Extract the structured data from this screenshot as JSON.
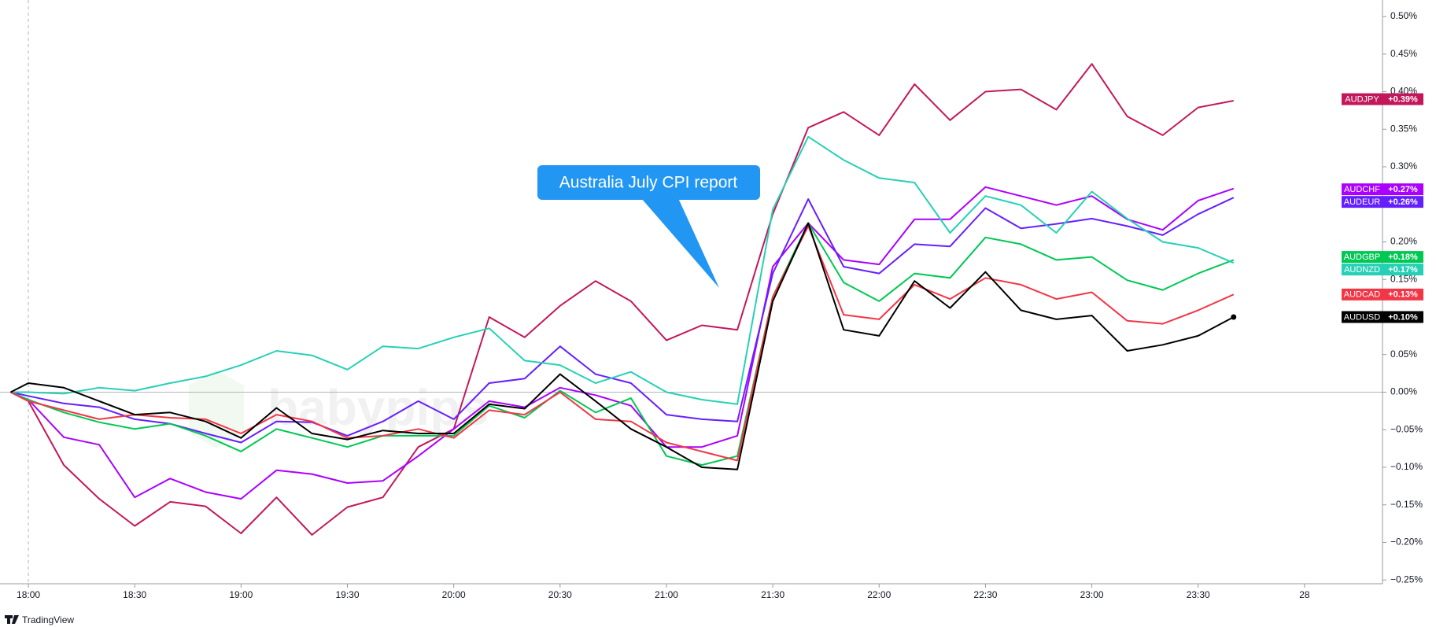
{
  "chart_data": {
    "type": "line",
    "annotation": "Australia July CPI report",
    "watermark": "babypips",
    "footer": "TradingView",
    "x": [
      "17:55",
      "18:00",
      "18:10",
      "18:20",
      "18:30",
      "18:40",
      "18:50",
      "19:00",
      "19:10",
      "19:20",
      "19:30",
      "19:40",
      "19:50",
      "20:00",
      "20:10",
      "20:20",
      "20:30",
      "20:40",
      "20:50",
      "21:00",
      "21:10",
      "21:20",
      "21:30",
      "21:40",
      "21:50",
      "22:00",
      "22:10",
      "22:20",
      "22:30",
      "22:40",
      "22:50",
      "23:00",
      "23:10",
      "23:20",
      "23:30",
      "23:40"
    ],
    "xlim": [
      "17:52",
      "00:22"
    ],
    "xticks": [
      "18:00",
      "18:30",
      "19:00",
      "19:30",
      "20:00",
      "20:30",
      "21:00",
      "21:30",
      "22:00",
      "22:30",
      "23:00",
      "23:30",
      {
        "value": "00:00",
        "label": "28"
      }
    ],
    "ylim": [
      -0.255,
      0.522
    ],
    "yticks": [
      {
        "value": 0.5,
        "label": "0.50%"
      },
      {
        "value": 0.45,
        "label": "0.45%"
      },
      {
        "value": 0.4,
        "label": "0.40%"
      },
      {
        "value": 0.35,
        "label": "0.35%"
      },
      {
        "value": 0.3,
        "label": "0.30%"
      },
      {
        "value": 0.25,
        "label": "0.25%"
      },
      {
        "value": 0.2,
        "label": "0.20%"
      },
      {
        "value": 0.15,
        "label": "0.15%"
      },
      {
        "value": 0.1,
        "label": "0.10%"
      },
      {
        "value": 0.05,
        "label": "0.05%"
      },
      {
        "value": 0,
        "label": "0.00%"
      },
      {
        "value": -0.05,
        "label": "−0.05%"
      },
      {
        "value": -0.1,
        "label": "−0.10%"
      },
      {
        "value": -0.15,
        "label": "−0.15%"
      },
      {
        "value": -0.2,
        "label": "−0.20%"
      },
      {
        "value": -0.25,
        "label": "−0.25%"
      }
    ],
    "grid": false,
    "series": [
      {
        "name": "AUDJPY",
        "color": "#c2185b",
        "last": {
          "value": 0.39,
          "label": "+0.39%"
        },
        "values": [
          0,
          -0.012,
          -0.097,
          -0.142,
          -0.178,
          -0.146,
          -0.152,
          -0.188,
          -0.14,
          -0.19,
          -0.153,
          -0.14,
          -0.073,
          -0.049,
          0.1,
          0.073,
          0.115,
          0.148,
          0.121,
          0.069,
          0.089,
          0.083,
          0.237,
          0.352,
          0.373,
          0.342,
          0.41,
          0.362,
          0.4,
          0.403,
          0.376,
          0.437,
          0.367,
          0.342,
          0.379,
          0.388
        ]
      },
      {
        "name": "AUDCHF",
        "color": "#aa00ff",
        "last": {
          "value": 0.27,
          "label": "+0.27%"
        },
        "values": [
          0,
          -0.01,
          -0.06,
          -0.07,
          -0.14,
          -0.115,
          -0.133,
          -0.142,
          -0.104,
          -0.109,
          -0.121,
          -0.118,
          -0.085,
          -0.049,
          -0.012,
          -0.02,
          0.006,
          -0.004,
          -0.018,
          -0.073,
          -0.073,
          -0.058,
          0.167,
          0.225,
          0.176,
          0.17,
          0.23,
          0.23,
          0.273,
          0.261,
          0.249,
          0.261,
          0.23,
          0.216,
          0.255,
          0.271
        ]
      },
      {
        "name": "AUDEUR",
        "color": "#651fff",
        "last": {
          "value": 0.26,
          "label": "+0.26%"
        },
        "values": [
          0,
          -0.005,
          -0.015,
          -0.02,
          -0.036,
          -0.042,
          -0.055,
          -0.067,
          -0.039,
          -0.04,
          -0.058,
          -0.039,
          -0.012,
          -0.036,
          0.012,
          0.018,
          0.061,
          0.024,
          0.012,
          -0.03,
          -0.036,
          -0.039,
          0.158,
          0.257,
          0.167,
          0.158,
          0.197,
          0.194,
          0.245,
          0.218,
          0.224,
          0.231,
          0.221,
          0.209,
          0.237,
          0.259
        ]
      },
      {
        "name": "AUDGBP",
        "color": "#00c853",
        "last": {
          "value": 0.18,
          "label": "+0.18%"
        },
        "values": [
          0,
          -0.01,
          -0.027,
          -0.04,
          -0.049,
          -0.042,
          -0.058,
          -0.079,
          -0.049,
          -0.061,
          -0.073,
          -0.058,
          -0.058,
          -0.058,
          -0.018,
          -0.034,
          0.002,
          -0.027,
          -0.008,
          -0.085,
          -0.097,
          -0.085,
          0.127,
          0.225,
          0.146,
          0.121,
          0.158,
          0.152,
          0.206,
          0.197,
          0.176,
          0.18,
          0.149,
          0.136,
          0.158,
          0.176
        ]
      },
      {
        "name": "AUDNZD",
        "color": "#26d0b5",
        "last": {
          "value": 0.17,
          "label": "+0.17%"
        },
        "values": [
          0,
          0,
          -0.002,
          0.006,
          0.002,
          0.012,
          0.021,
          0.036,
          0.055,
          0.049,
          0.03,
          0.061,
          0.058,
          0.073,
          0.085,
          0.042,
          0.036,
          0.012,
          0.027,
          0,
          -0.01,
          -0.016,
          0.243,
          0.34,
          0.309,
          0.285,
          0.279,
          0.212,
          0.261,
          0.249,
          0.212,
          0.267,
          0.231,
          0.2,
          0.192,
          0.172
        ]
      },
      {
        "name": "AUDCAD",
        "color": "#f23645",
        "last": {
          "value": 0.13,
          "label": "+0.13%"
        },
        "values": [
          0,
          -0.012,
          -0.024,
          -0.036,
          -0.03,
          -0.034,
          -0.036,
          -0.055,
          -0.03,
          -0.039,
          -0.061,
          -0.058,
          -0.049,
          -0.061,
          -0.024,
          -0.03,
          0,
          -0.036,
          -0.039,
          -0.067,
          -0.079,
          -0.091,
          0.127,
          0.221,
          0.103,
          0.097,
          0.143,
          0.124,
          0.152,
          0.143,
          0.124,
          0.133,
          0.095,
          0.091,
          0.109,
          0.13
        ]
      },
      {
        "name": "AUDUSD",
        "color": "#000000",
        "last": {
          "value": 0.1,
          "label": "+0.10%"
        },
        "values": [
          0,
          0.012,
          0.006,
          -0.012,
          -0.03,
          -0.027,
          -0.039,
          -0.061,
          -0.021,
          -0.055,
          -0.063,
          -0.051,
          -0.055,
          -0.055,
          -0.016,
          -0.022,
          0.024,
          -0.012,
          -0.049,
          -0.073,
          -0.1,
          -0.103,
          0.121,
          0.225,
          0.083,
          0.075,
          0.148,
          0.112,
          0.16,
          0.109,
          0.097,
          0.102,
          0.055,
          0.063,
          0.075,
          0.1
        ]
      }
    ]
  }
}
